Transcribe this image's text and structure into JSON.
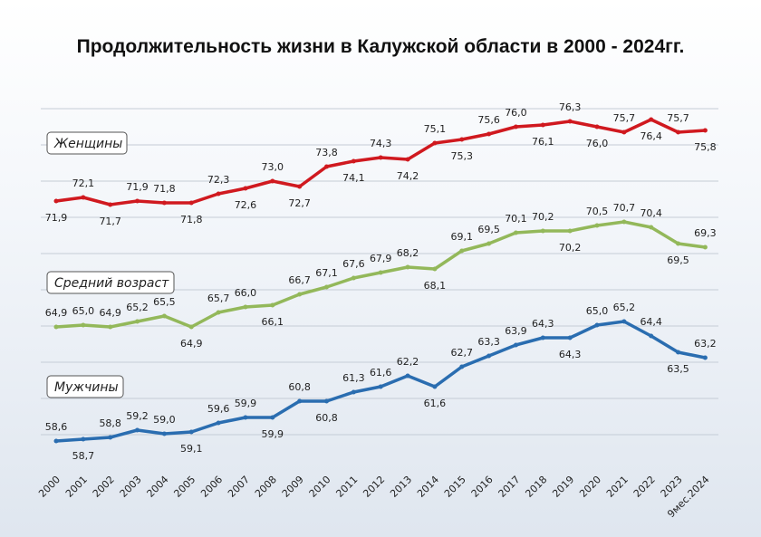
{
  "chart_data": {
    "type": "line",
    "title": "Продолжительность жизни в Калужской области в 2000 - 2024гг.",
    "categories": [
      "2000",
      "2001",
      "2002",
      "2003",
      "2004",
      "2005",
      "2006",
      "2007",
      "2008",
      "2009",
      "2010",
      "2011",
      "2012",
      "2013",
      "2014",
      "2015",
      "2016",
      "2017",
      "2018",
      "2019",
      "2020",
      "2021",
      "2022",
      "2023",
      "9мес.2024"
    ],
    "series": [
      {
        "name": "Женщины",
        "color": "#d0191f",
        "values": [
          71.9,
          72.1,
          71.7,
          71.9,
          71.8,
          71.8,
          72.3,
          72.6,
          73.0,
          72.7,
          73.8,
          74.1,
          74.3,
          74.2,
          75.1,
          75.3,
          75.6,
          76.0,
          76.1,
          76.3,
          76.0,
          75.7,
          76.4,
          75.7,
          75.8
        ]
      },
      {
        "name": "Средний возраст",
        "color": "#93b85a",
        "values": [
          64.9,
          65.0,
          64.9,
          65.2,
          65.5,
          64.9,
          65.7,
          66.0,
          66.1,
          66.7,
          67.1,
          67.6,
          67.9,
          68.2,
          68.1,
          69.1,
          69.5,
          70.1,
          70.2,
          70.2,
          70.5,
          70.7,
          70.4,
          69.5,
          69.3
        ]
      },
      {
        "name": "Мужчины",
        "color": "#2a6db0",
        "values": [
          58.6,
          58.7,
          58.8,
          59.2,
          59.0,
          59.1,
          59.6,
          59.9,
          59.9,
          60.8,
          60.8,
          61.3,
          61.6,
          62.2,
          61.6,
          62.7,
          63.3,
          63.9,
          64.3,
          64.3,
          65.0,
          65.2,
          64.4,
          63.5,
          63.2
        ]
      }
    ],
    "grid": true,
    "decimal_separator": ","
  }
}
